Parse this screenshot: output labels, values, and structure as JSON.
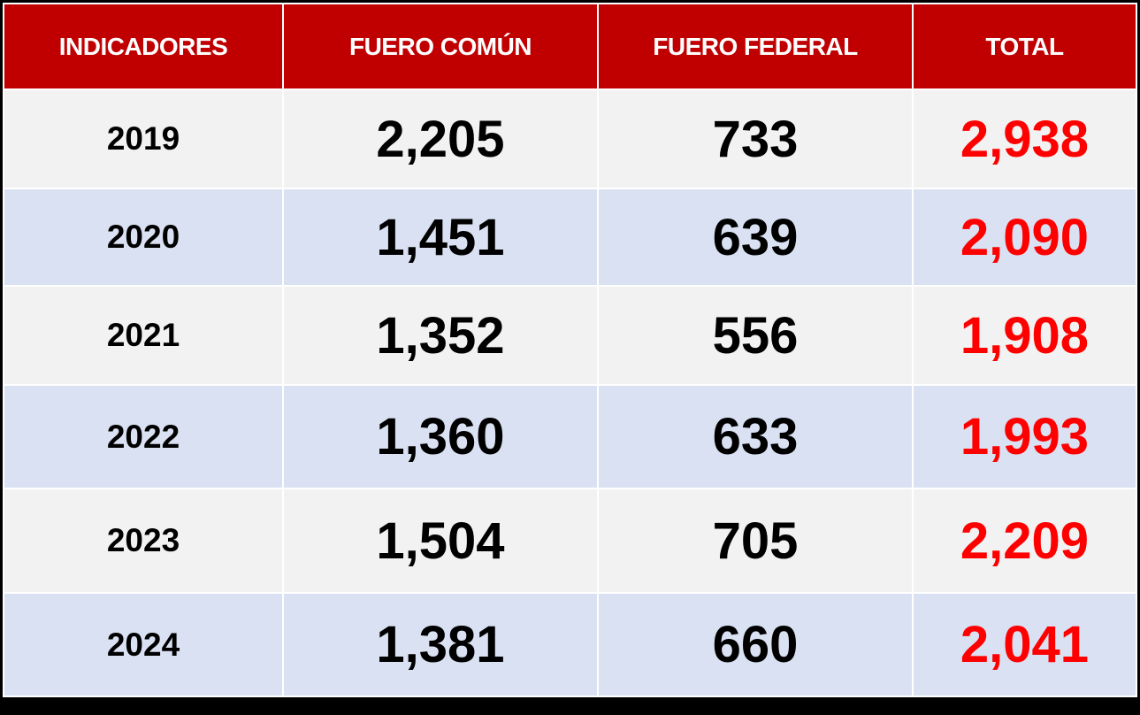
{
  "table": {
    "headers": [
      "INDICADORES",
      "FUERO COMÚN",
      "FUERO FEDERAL",
      "TOTAL"
    ],
    "rows": [
      {
        "year": "2019",
        "fuero_comun": "2,205",
        "fuero_federal": "733",
        "total": "2,938"
      },
      {
        "year": "2020",
        "fuero_comun": "1,451",
        "fuero_federal": "639",
        "total": "2,090"
      },
      {
        "year": "2021",
        "fuero_comun": "1,352",
        "fuero_federal": "556",
        "total": "1,908"
      },
      {
        "year": "2022",
        "fuero_comun": "1,360",
        "fuero_federal": "633",
        "total": "1,993"
      },
      {
        "year": "2023",
        "fuero_comun": "1,504",
        "fuero_federal": "705",
        "total": "2,209"
      },
      {
        "year": "2024",
        "fuero_comun": "1,381",
        "fuero_federal": "660",
        "total": "2,041"
      }
    ]
  },
  "colors": {
    "header_bg": "#c00000",
    "header_text": "#ffffff",
    "row_light": "#f2f2f2",
    "row_blue": "#d9e1f2",
    "total_text": "#ff0000",
    "background": "#000000"
  }
}
